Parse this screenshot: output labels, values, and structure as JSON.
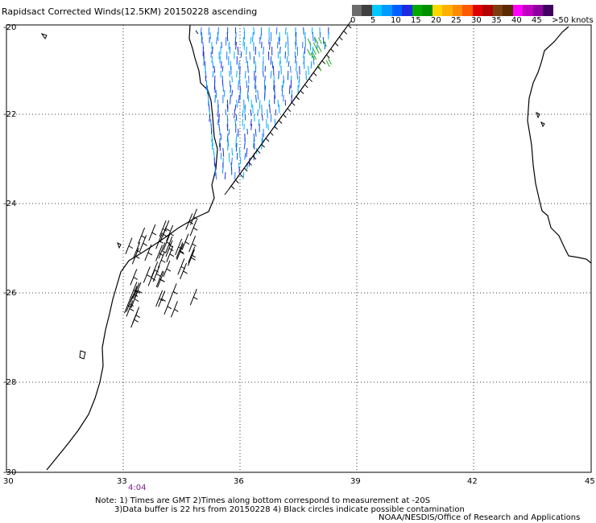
{
  "title": "Rapidsact Corrected Winds(12.5KM) 20150228 ascending",
  "colorbar": {
    "labels": [
      "0",
      "5",
      "10",
      "15",
      "20",
      "25",
      "30",
      "35",
      "40",
      "45",
      ">50 knots"
    ],
    "colors": [
      "#6b6b6b",
      "#3f3f3f",
      "#00c8ff",
      "#009bff",
      "#0060ff",
      "#1e2be0",
      "#00a800",
      "#009000",
      "#ffd700",
      "#ffb000",
      "#ff8c00",
      "#ff5a00",
      "#e00000",
      "#b40000",
      "#7a3e10",
      "#5a2a00",
      "#ff00ff",
      "#c000c0",
      "#9000a0",
      "#400060"
    ]
  },
  "map": {
    "lat_labels": [
      "-20",
      "-22",
      "-24",
      "-26",
      "-28",
      "-30"
    ],
    "lon_labels": [
      "30",
      "33",
      "36",
      "39",
      "42",
      "45"
    ],
    "time_label": "4:04"
  },
  "notes": {
    "line1": "Note: 1) Times are GMT 2)Times along bottom correspond to measurement at -20S",
    "line2": "3)Data buffer is 22 hrs from 20150228 4) Black circles indicate possible contamination",
    "credit": "NOAA/NESDIS/Office of Research and Applications"
  }
}
